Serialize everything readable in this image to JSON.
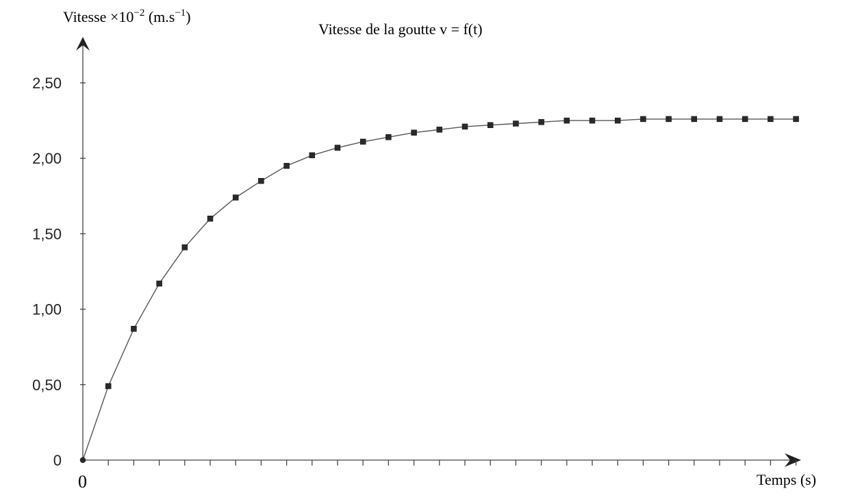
{
  "chart_data": {
    "type": "scatter",
    "title": "Vitesse de la goutte v = f(t)",
    "ylabel": {
      "prefix": "Vitesse  ×10",
      "exponent": "−2",
      "unit_start": " (m.s",
      "unit_exponent": "−1",
      "unit_end": ")"
    },
    "xlabel": "Temps (s)",
    "x_origin_label": "0",
    "y_ticks": [
      "0",
      "0,50",
      "1,00",
      "1,50",
      "2,00",
      "2,50"
    ],
    "ylim": [
      0,
      2.5
    ],
    "x_ticks_count": 28,
    "series": [
      {
        "x": [
          0,
          1,
          2,
          3,
          4,
          5,
          6,
          7,
          8,
          9,
          10,
          11,
          12,
          13,
          14,
          15,
          16,
          17,
          18,
          19,
          20,
          21,
          22,
          23,
          24,
          25,
          26,
          27,
          28
        ],
        "values": [
          0.0,
          0.49,
          0.87,
          1.17,
          1.41,
          1.6,
          1.74,
          1.85,
          1.95,
          2.02,
          2.07,
          2.11,
          2.14,
          2.17,
          2.19,
          2.21,
          2.22,
          2.23,
          2.24,
          2.25,
          2.25,
          2.25,
          2.26,
          2.26,
          2.26,
          2.26,
          2.26,
          2.26,
          2.26
        ]
      }
    ]
  }
}
